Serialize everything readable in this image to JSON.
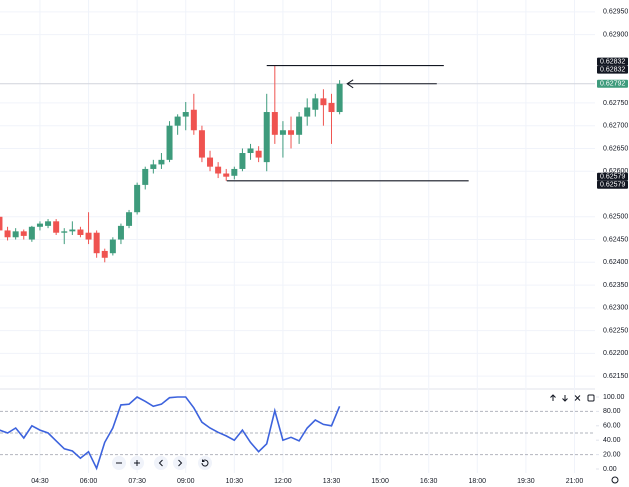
{
  "chart_data": [
    {
      "type": "candlestick",
      "x": [
        195,
        210,
        225,
        240,
        255,
        270,
        285,
        300,
        315,
        330,
        345,
        360,
        375,
        390,
        405,
        420,
        435,
        450,
        465,
        480,
        495,
        510,
        525,
        540,
        555,
        570,
        585,
        600,
        615,
        630,
        645,
        660,
        675,
        690,
        705,
        720,
        735,
        750,
        765,
        780,
        795,
        810,
        825
      ],
      "open": [
        0.625,
        0.6247,
        0.62455,
        0.62468,
        0.6245,
        0.62478,
        0.6248,
        0.6249,
        0.62465,
        0.62468,
        0.62472,
        0.62465,
        0.62465,
        0.62425,
        0.6242,
        0.6245,
        0.6248,
        0.6251,
        0.6257,
        0.62605,
        0.62615,
        0.62625,
        0.627,
        0.6272,
        0.62735,
        0.6269,
        0.6263,
        0.6261,
        0.62595,
        0.6259,
        0.62605,
        0.6264,
        0.62645,
        0.6262,
        0.6273,
        0.6268,
        0.6269,
        0.6268,
        0.6272,
        0.62735,
        0.6276,
        0.6275,
        0.6273
      ],
      "high": [
        0.6251,
        0.62478,
        0.62475,
        0.62472,
        0.6248,
        0.6249,
        0.62495,
        0.62495,
        0.62475,
        0.6249,
        0.62478,
        0.6251,
        0.6247,
        0.6243,
        0.62455,
        0.62485,
        0.62515,
        0.62575,
        0.6261,
        0.62625,
        0.6264,
        0.6271,
        0.62725,
        0.62752,
        0.6277,
        0.627,
        0.62645,
        0.6262,
        0.62605,
        0.6261,
        0.6265,
        0.6266,
        0.62655,
        0.6277,
        0.62832,
        0.6271,
        0.6272,
        0.6273,
        0.6276,
        0.6277,
        0.6278,
        0.6277,
        0.628
      ],
      "low": [
        0.62465,
        0.62448,
        0.6245,
        0.6245,
        0.62445,
        0.6247,
        0.62475,
        0.6246,
        0.6244,
        0.6246,
        0.62455,
        0.6244,
        0.6241,
        0.624,
        0.62415,
        0.6244,
        0.62475,
        0.62505,
        0.6256,
        0.62595,
        0.62605,
        0.6262,
        0.6268,
        0.6269,
        0.6268,
        0.6262,
        0.626,
        0.62585,
        0.62579,
        0.62582,
        0.626,
        0.62625,
        0.6262,
        0.626,
        0.6266,
        0.6263,
        0.6265,
        0.6266,
        0.627,
        0.6272,
        0.627,
        0.6266,
        0.62725
      ],
      "close": [
        0.6247,
        0.62455,
        0.62468,
        0.62458,
        0.62478,
        0.62485,
        0.6249,
        0.62465,
        0.62468,
        0.62472,
        0.6246,
        0.6245,
        0.6242,
        0.6241,
        0.6245,
        0.6248,
        0.6251,
        0.6257,
        0.62605,
        0.62615,
        0.62625,
        0.627,
        0.6272,
        0.6273,
        0.6269,
        0.6263,
        0.6261,
        0.62595,
        0.62588,
        0.62605,
        0.6264,
        0.6265,
        0.6263,
        0.6273,
        0.6268,
        0.6269,
        0.6268,
        0.6272,
        0.6274,
        0.6276,
        0.62745,
        0.6273,
        0.62792
      ],
      "up_color": "#3e9b7c",
      "down_color": "#ef5350",
      "xlim": [
        196,
        1298
      ],
      "xticks": [
        {
          "value": 270,
          "label": "04:30"
        },
        {
          "value": 360,
          "label": "06:00"
        },
        {
          "value": 450,
          "label": "07:30"
        },
        {
          "value": 540,
          "label": "09:00"
        },
        {
          "value": 630,
          "label": "10:30"
        },
        {
          "value": 720,
          "label": "12:00"
        },
        {
          "value": 810,
          "label": "13:30"
        },
        {
          "value": 900,
          "label": "15:00"
        },
        {
          "value": 990,
          "label": "16:30"
        },
        {
          "value": 1080,
          "label": "18:00"
        },
        {
          "value": 1170,
          "label": "19:30"
        },
        {
          "value": 1260,
          "label": "21:00"
        }
      ],
      "ylim": [
        0.62976,
        0.62124
      ],
      "yticks": [
        {
          "value": 0.6295,
          "label": "0.62950"
        },
        {
          "value": 0.629,
          "label": "0.62900"
        },
        {
          "value": 0.6275,
          "label": "0.62750"
        },
        {
          "value": 0.627,
          "label": "0.62700"
        },
        {
          "value": 0.6265,
          "label": "0.62650"
        },
        {
          "value": 0.626,
          "label": "0.62600"
        },
        {
          "value": 0.625,
          "label": "0.62500"
        },
        {
          "value": 0.6245,
          "label": "0.62450"
        },
        {
          "value": 0.624,
          "label": "0.62400"
        },
        {
          "value": 0.6235,
          "label": "0.62350"
        },
        {
          "value": 0.623,
          "label": "0.62300"
        },
        {
          "value": 0.6225,
          "label": "0.62250"
        },
        {
          "value": 0.622,
          "label": "0.62200"
        },
        {
          "value": 0.6215,
          "label": "0.62150"
        }
      ],
      "grid": true,
      "hlines": [
        {
          "value": 0.62832,
          "from": 690,
          "to": 1018
        },
        {
          "value": 0.62579,
          "from": 616,
          "to": 1064
        }
      ],
      "arrow": {
        "value": 0.62792,
        "from": 1005,
        "to": 839
      },
      "price_labels": [
        {
          "value": 0.62832,
          "label": "0.62832",
          "color": "#131722"
        },
        {
          "value": 0.62832,
          "label": "0.62832",
          "color": "#131722"
        },
        {
          "value": 0.62792,
          "label": "0.62792",
          "color": "#3e9b7c"
        },
        {
          "value": 0.62579,
          "label": "0.62579",
          "color": "#131722"
        },
        {
          "value": 0.62579,
          "label": "0.62579",
          "color": "#131722"
        }
      ]
    },
    {
      "type": "line",
      "x": [
        195,
        210,
        225,
        240,
        255,
        270,
        285,
        300,
        315,
        330,
        345,
        360,
        375,
        390,
        405,
        420,
        435,
        450,
        465,
        480,
        495,
        510,
        525,
        540,
        555,
        570,
        585,
        600,
        615,
        630,
        645,
        660,
        675,
        690,
        705,
        720,
        735,
        750,
        765,
        780,
        795,
        810,
        825
      ],
      "values": [
        54,
        50,
        57,
        43,
        60,
        54,
        50,
        39,
        28,
        25,
        15,
        24,
        1,
        37,
        57,
        89,
        90,
        100,
        94,
        87,
        90,
        99,
        100,
        100,
        85,
        65,
        57,
        51,
        46,
        40,
        54,
        37,
        24,
        35,
        81,
        40,
        44,
        39,
        57,
        68,
        62,
        60,
        87
      ],
      "color": "#3d63dd",
      "ylim": [
        -12.5,
        109.7
      ],
      "yticks": [
        {
          "value": 100,
          "label": "100.00"
        },
        {
          "value": 80,
          "label": "80.00"
        },
        {
          "value": 60,
          "label": "60.00"
        },
        {
          "value": 40,
          "label": "40.00"
        },
        {
          "value": 20,
          "label": "20.00"
        },
        {
          "value": 0,
          "label": "0.00"
        }
      ],
      "levels": [
        80,
        50,
        20
      ]
    }
  ]
}
